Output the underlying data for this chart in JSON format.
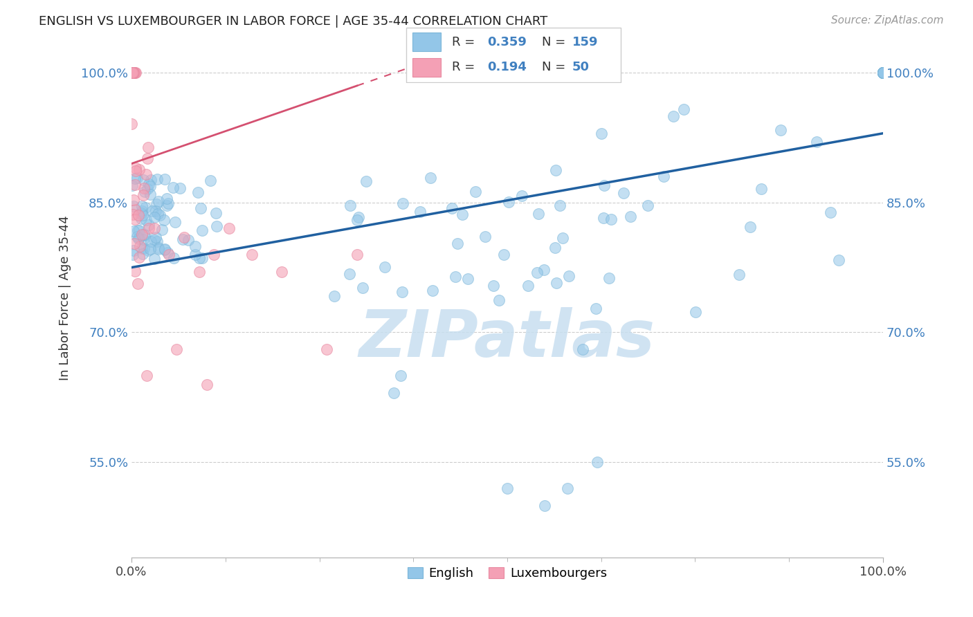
{
  "title": "ENGLISH VS LUXEMBOURGER IN LABOR FORCE | AGE 35-44 CORRELATION CHART",
  "source": "Source: ZipAtlas.com",
  "ylabel": "In Labor Force | Age 35-44",
  "xlim": [
    0.0,
    1.0
  ],
  "ylim": [
    0.44,
    1.04
  ],
  "ytick_labels": [
    "55.0%",
    "70.0%",
    "85.0%",
    "100.0%"
  ],
  "ytick_values": [
    0.55,
    0.7,
    0.85,
    1.0
  ],
  "xtick_labels": [
    "0.0%",
    "100.0%"
  ],
  "english_R": 0.359,
  "english_N": 159,
  "luxembourger_R": 0.194,
  "luxembourger_N": 50,
  "english_color": "#93c6e8",
  "luxembourger_color": "#f4a0b5",
  "english_line_color": "#2060a0",
  "luxembourger_line_color": "#d45070",
  "english_line_intercept": 0.775,
  "english_line_slope": 0.155,
  "luxembourger_line_intercept": 0.895,
  "luxembourger_line_slope": 0.3,
  "watermark_text": "ZIPatlas",
  "watermark_color": "#c8dff0",
  "right_tick_color": "#4080c0",
  "legend_color_english": "#4393c3",
  "legend_color_luxembourger": "#e05a7a"
}
